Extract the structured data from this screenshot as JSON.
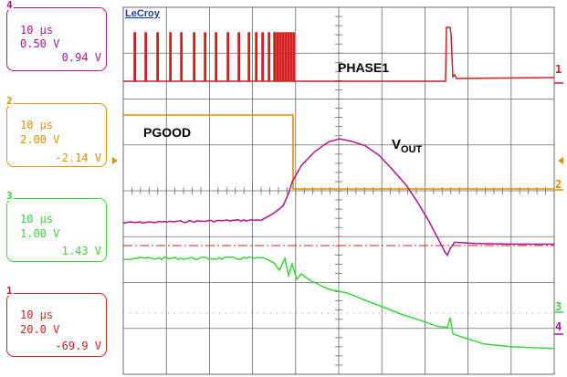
{
  "brand": "LeCroy",
  "channels": [
    {
      "id": "4",
      "color": "#b4118f",
      "time": "10 µs",
      "volts_div": "0.50 V",
      "offset": "0.94 V"
    },
    {
      "id": "2",
      "color": "#e08f00",
      "time": "10 µs",
      "volts_div": "2.00 V",
      "offset": "-2.14 V"
    },
    {
      "id": "3",
      "color": "#3cd43c",
      "time": "10 µs",
      "volts_div": "1.00 V",
      "offset": "1.43 V"
    },
    {
      "id": "1",
      "color": "#d21f1f",
      "time": "10 µs",
      "volts_div": "20.0 V",
      "offset": "-69.9 V"
    }
  ],
  "trace_labels": {
    "phase1": "PHASE1",
    "pgood": "PGOOD",
    "vout_main": "V",
    "vout_sub": "OUT"
  },
  "right_markers": {
    "ch1": "1",
    "ch2": "2",
    "ch3": "3",
    "ch4": "4"
  },
  "colors": {
    "grid": "#6a6a6a",
    "phase1": "#d21f1f",
    "pgood": "#e08f00",
    "vout": "#b4118f",
    "ch3": "#3cd43c"
  }
}
